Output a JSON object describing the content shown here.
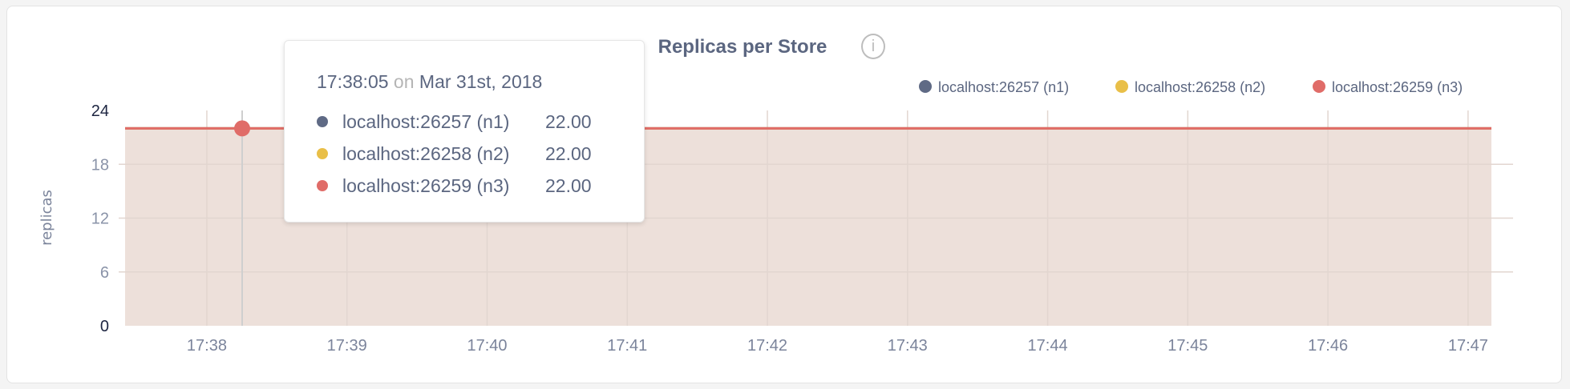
{
  "chart_data": {
    "type": "area",
    "title": "Replicas per Store",
    "ylabel": "replicas",
    "xlabel": "",
    "ylim": [
      0,
      24
    ],
    "yticks": [
      "0",
      "6",
      "12",
      "18",
      "24"
    ],
    "xticks": [
      "17:38",
      "17:39",
      "17:40",
      "17:41",
      "17:42",
      "17:43",
      "17:44",
      "17:45",
      "17:46",
      "17:47"
    ],
    "xlim": [
      "17:37:25",
      "17:47:10"
    ],
    "grid": true,
    "legend_position": "top-right",
    "series": [
      {
        "name": "localhost:26257 (n1)",
        "color": "#5f6a85",
        "x": [
          "17:37:25",
          "17:47:10"
        ],
        "values": [
          22,
          22
        ]
      },
      {
        "name": "localhost:26258 (n2)",
        "color": "#e9bf48",
        "x": [
          "17:37:25",
          "17:47:10"
        ],
        "values": [
          22,
          22
        ]
      },
      {
        "name": "localhost:26259 (n3)",
        "color": "#e06c68",
        "x": [
          "17:37:25",
          "17:47:10"
        ],
        "values": [
          22,
          22
        ]
      }
    ],
    "fill_color": "#ede0da"
  },
  "info_icon": "info-icon",
  "tooltip": {
    "time": "17:38:05",
    "on": "on",
    "date": "Mar 31st, 2018",
    "rows": [
      {
        "name": "localhost:26257 (n1)",
        "value": "22.00",
        "color": "#5f6a85"
      },
      {
        "name": "localhost:26258 (n2)",
        "value": "22.00",
        "color": "#e9bf48"
      },
      {
        "name": "localhost:26259 (n3)",
        "value": "22.00",
        "color": "#e06c68"
      }
    ]
  }
}
